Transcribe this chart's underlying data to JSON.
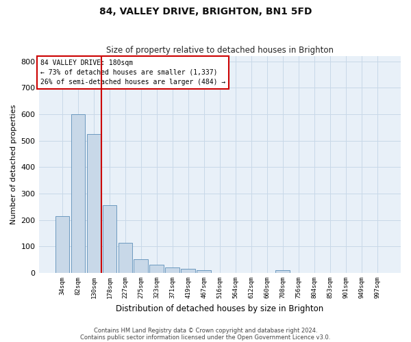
{
  "title1": "84, VALLEY DRIVE, BRIGHTON, BN1 5FD",
  "title2": "Size of property relative to detached houses in Brighton",
  "xlabel": "Distribution of detached houses by size in Brighton",
  "ylabel": "Number of detached properties",
  "categories": [
    "34sqm",
    "82sqm",
    "130sqm",
    "178sqm",
    "227sqm",
    "275sqm",
    "323sqm",
    "371sqm",
    "419sqm",
    "467sqm",
    "516sqm",
    "564sqm",
    "612sqm",
    "660sqm",
    "708sqm",
    "756sqm",
    "804sqm",
    "853sqm",
    "901sqm",
    "949sqm",
    "997sqm"
  ],
  "values": [
    215,
    600,
    525,
    255,
    115,
    52,
    32,
    20,
    15,
    10,
    0,
    0,
    0,
    0,
    10,
    0,
    0,
    0,
    0,
    0,
    0
  ],
  "bar_color": "#c8d8e8",
  "bar_edge_color": "#5b8db8",
  "vline_index": 3,
  "annotation_text1": "84 VALLEY DRIVE: 180sqm",
  "annotation_text2": "← 73% of detached houses are smaller (1,337)",
  "annotation_text3": "26% of semi-detached houses are larger (484) →",
  "annotation_box_color": "#ffffff",
  "annotation_border_color": "#cc0000",
  "vline_color": "#cc0000",
  "grid_color": "#c8d8e8",
  "background_color": "#e8f0f8",
  "footer1": "Contains HM Land Registry data © Crown copyright and database right 2024.",
  "footer2": "Contains public sector information licensed under the Open Government Licence v3.0.",
  "ylim": [
    0,
    820
  ],
  "yticks": [
    0,
    100,
    200,
    300,
    400,
    500,
    600,
    700,
    800
  ]
}
